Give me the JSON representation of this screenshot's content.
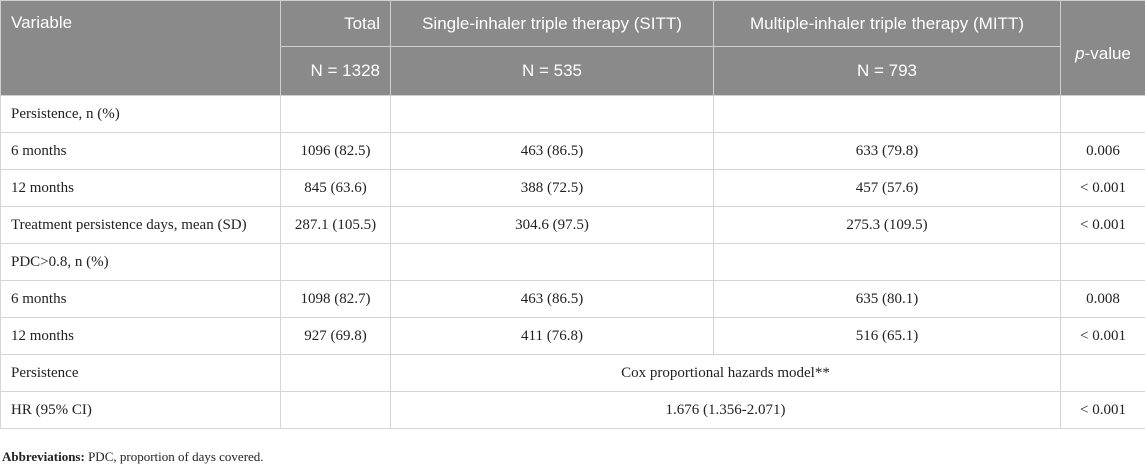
{
  "header": {
    "variable": "Variable",
    "total": "Total",
    "sitt": "Single-inhaler triple therapy (SITT)",
    "mitt": "Multiple-inhaler triple therapy (MITT)",
    "pvalue_italic": "p",
    "pvalue_rest": "-value",
    "n_total": "N = 1328",
    "n_sitt": "N = 535",
    "n_mitt": "N = 793"
  },
  "rows": {
    "persistence_header": "Persistence, n (%)",
    "p6": {
      "label": "6 months",
      "total": "1096 (82.5)",
      "sitt": "463 (86.5)",
      "mitt": "633 (79.8)",
      "p": "0.006"
    },
    "p12": {
      "label": "12 months",
      "total": "845 (63.6)",
      "sitt": "388 (72.5)",
      "mitt": "457 (57.6)",
      "p": "< 0.001"
    },
    "days": {
      "label": "Treatment persistence days, mean (SD)",
      "total": "287.1 (105.5)",
      "sitt": "304.6 (97.5)",
      "mitt": "275.3 (109.5)",
      "p": "< 0.001"
    },
    "pdc_header": "PDC>0.8, n (%)",
    "pdc6": {
      "label": "6 months",
      "total": "1098 (82.7)",
      "sitt": "463 (86.5)",
      "mitt": "635 (80.1)",
      "p": "0.008"
    },
    "pdc12": {
      "label": "12 months",
      "total": "927 (69.8)",
      "sitt": "411 (76.8)",
      "mitt": "516 (65.1)",
      "p": "< 0.001"
    },
    "cox": {
      "label": "Persistence",
      "model": "Cox proportional hazards model**"
    },
    "hr": {
      "label": "HR (95% CI)",
      "value": "1.676 (1.356-2.071)",
      "p": "< 0.001"
    }
  },
  "footnote": {
    "label": "Abbreviations:",
    "text": " PDC, proportion of days covered."
  }
}
